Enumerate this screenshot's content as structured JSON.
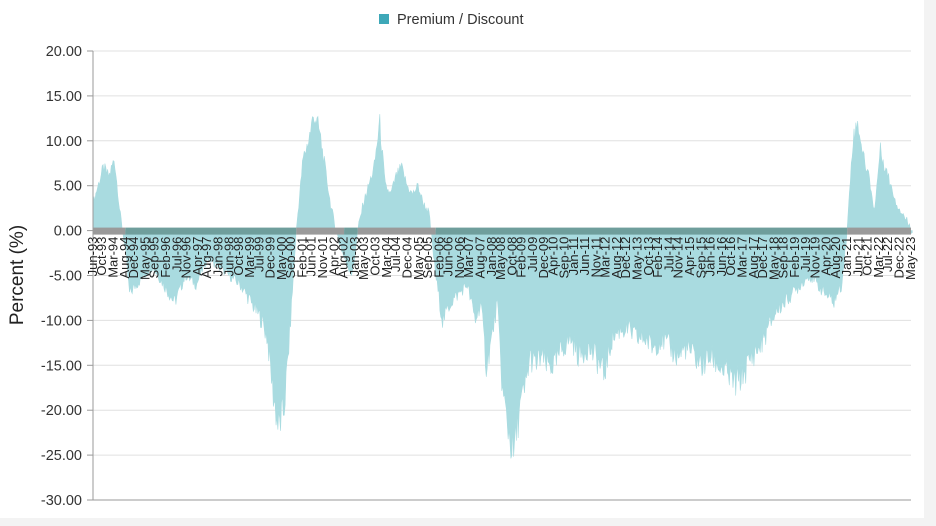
{
  "chart_data": {
    "type": "area",
    "ylabel": "Percent (%)",
    "legend": {
      "label": "Premium / Discount",
      "position": "top-center"
    },
    "ylim": [
      -30,
      20
    ],
    "yticks": [
      "20.00",
      "15.00",
      "10.00",
      "5.00",
      "0.00",
      "-5.00",
      "-10.00",
      "-15.00",
      "-20.00",
      "-25.00",
      "-30.00"
    ],
    "grid": true,
    "colors": {
      "area": "#a9dbe0",
      "legend_marker": "#3ea8b8",
      "band_gray": "#9a9a9a",
      "band_teal": "#6f9e9c",
      "grid": "#e0e0e0",
      "axis": "#9a9a9a"
    },
    "xticks": [
      "Jun-93",
      "Oct-93",
      "Mar-94",
      "Aug-94",
      "Dec-94",
      "May-95",
      "Sep-95",
      "Feb-96",
      "Jul-96",
      "Nov-96",
      "Apr-97",
      "Aug-97",
      "Jan-98",
      "Jun-98",
      "Oct-98",
      "Mar-99",
      "Jul-99",
      "Dec-99",
      "May-00",
      "Sep-00",
      "Feb-01",
      "Jun-01",
      "Nov-01",
      "Apr-02",
      "Aug-02",
      "Jan-03",
      "May-03",
      "Oct-03",
      "Mar-04",
      "Jul-04",
      "Dec-04",
      "May-05",
      "Sep-05",
      "Feb-06",
      "Jun-06",
      "Nov-06",
      "Mar-07",
      "Aug-07",
      "Jan-08",
      "May-08",
      "Oct-08",
      "Feb-09",
      "Jul-09",
      "Dec-09",
      "Apr-10",
      "Sep-10",
      "Jan-11",
      "Jun-11",
      "Nov-11",
      "Mar-12",
      "Aug-12",
      "Dec-12",
      "May-13",
      "Oct-13",
      "Feb-14",
      "Jul-14",
      "Nov-14",
      "Apr-15",
      "Sep-15",
      "Jan-16",
      "Jun-16",
      "Oct-16",
      "Mar-17",
      "Aug-17",
      "Dec-17",
      "May-18",
      "Sep-18",
      "Feb-19",
      "Jul-19",
      "Nov-19",
      "Apr-20",
      "Aug-20",
      "Jan-21",
      "Jun-21",
      "Oct-21",
      "Mar-22",
      "Jul-22",
      "Dec-22",
      "May-23"
    ],
    "x_range": [
      "Jun-93",
      "May-23"
    ],
    "series": [
      {
        "name": "Premium / Discount",
        "t": [
          1993.42,
          1993.6,
          1993.8,
          1994.0,
          1994.2,
          1994.4,
          1994.6,
          1994.75,
          1995.0,
          1995.3,
          1995.6,
          1996.0,
          1996.4,
          1996.8,
          1997.2,
          1997.6,
          1998.0,
          1998.4,
          1998.8,
          1999.2,
          1999.6,
          1999.8,
          2000.0,
          2000.2,
          2000.4,
          2000.6,
          2000.85,
          2001.1,
          2001.3,
          2001.5,
          2001.7,
          2001.9,
          2002.1,
          2002.3,
          2002.6,
          2002.9,
          2003.1,
          2003.3,
          2003.5,
          2003.7,
          2003.9,
          2004.1,
          2004.3,
          2004.5,
          2004.7,
          2004.9,
          2005.1,
          2005.3,
          2005.5,
          2005.7,
          2005.95,
          2006.2,
          2006.5,
          2006.8,
          2007.1,
          2007.4,
          2007.6,
          2007.8,
          2008.0,
          2008.2,
          2008.4,
          2008.6,
          2008.8,
          2009.0,
          2009.2,
          2009.4,
          2009.6,
          2009.8,
          2010.0,
          2010.3,
          2010.6,
          2010.9,
          2011.2,
          2011.5,
          2011.8,
          2012.1,
          2012.4,
          2012.7,
          2013.0,
          2013.3,
          2013.6,
          2013.9,
          2014.2,
          2014.5,
          2014.8,
          2015.1,
          2015.4,
          2015.7,
          2016.0,
          2016.3,
          2016.6,
          2016.9,
          2017.2,
          2017.5,
          2017.8,
          2018.1,
          2018.4,
          2018.7,
          2019.0,
          2019.3,
          2019.6,
          2019.9,
          2020.2,
          2020.5,
          2020.8,
          2021.0,
          2021.2,
          2021.4,
          2021.6,
          2021.8,
          2022.0,
          2022.2,
          2022.4,
          2022.6,
          2022.8,
          2023.0,
          2023.2,
          2023.38
        ],
        "values": [
          3,
          5,
          7,
          6,
          8,
          2,
          -2,
          -7,
          -6,
          -5,
          -4,
          -6,
          -8,
          -5,
          -6,
          -3,
          -4,
          -5,
          -6,
          -8,
          -10,
          -12,
          -18,
          -22,
          -20,
          -12,
          0,
          8,
          10,
          13,
          11,
          7,
          3,
          0,
          -3,
          -5,
          0,
          3,
          5,
          7,
          12,
          5,
          4,
          6,
          7,
          5,
          4,
          5,
          3,
          2,
          -5,
          -10,
          -8,
          -7,
          -6,
          -10,
          -8,
          -15,
          -12,
          -8,
          -18,
          -22,
          -25,
          -20,
          -18,
          -14,
          -15,
          -14,
          -15,
          -15,
          -13,
          -12,
          -14,
          -13,
          -14,
          -16,
          -12,
          -11,
          -11,
          -12,
          -12,
          -13,
          -12,
          -13,
          -14,
          -13,
          -14,
          -15,
          -14,
          -15,
          -16,
          -17,
          -16,
          -14,
          -13,
          -11,
          -9,
          -8,
          -7,
          -6,
          -5,
          -6,
          -7,
          -8,
          -6,
          0,
          10,
          12,
          8,
          6,
          2,
          9,
          7,
          5,
          3,
          2,
          1,
          0
        ]
      }
    ]
  }
}
